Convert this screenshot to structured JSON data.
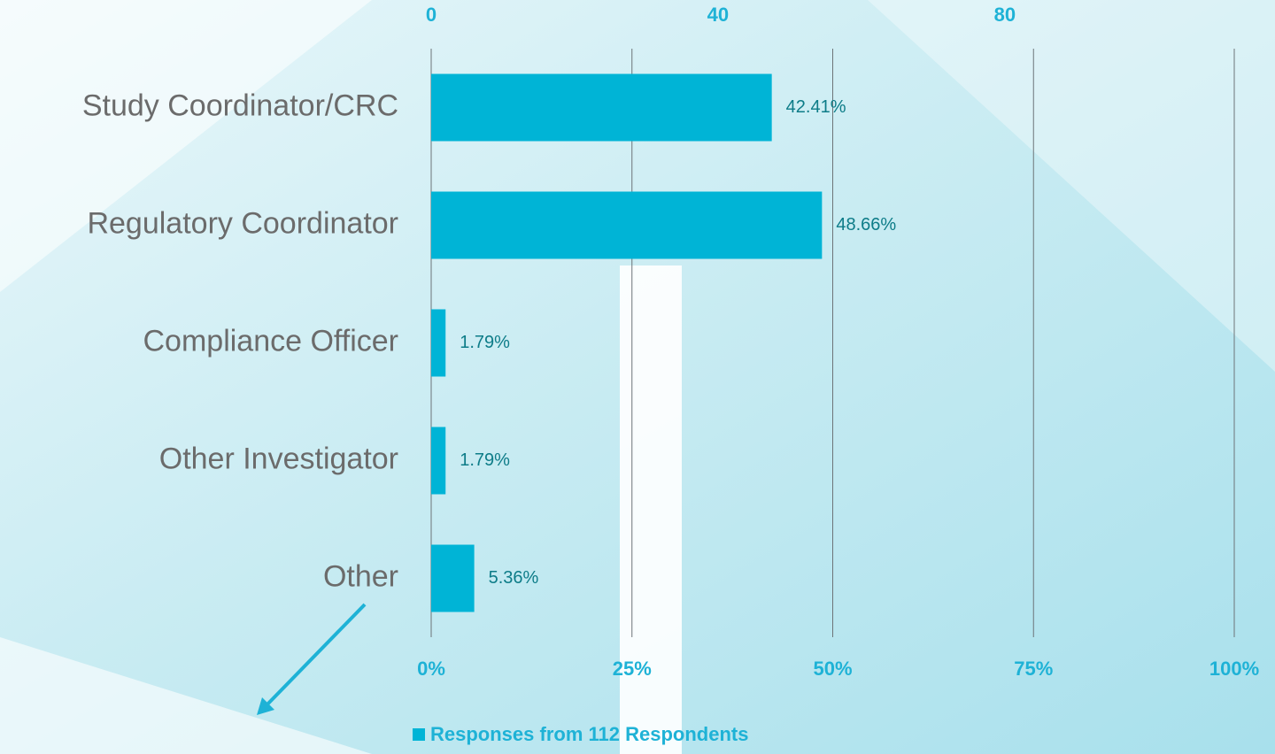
{
  "chart_data": {
    "type": "bar",
    "orientation": "horizontal",
    "categories": [
      "Study Coordinator/CRC",
      "Regulatory Coordinator",
      "Compliance Officer",
      "Other Investigator",
      "Other"
    ],
    "series": [
      {
        "name": "Responses from 112 Respondents",
        "color": "#00b4d6",
        "values": [
          42.41,
          48.66,
          1.79,
          1.79,
          5.36
        ],
        "value_labels": [
          "42.41%",
          "48.66%",
          "1.79%",
          "1.79%",
          "5.36%"
        ]
      }
    ],
    "xlim": [
      0,
      100
    ],
    "xticks": [
      {
        "value": 0,
        "label": "0%"
      },
      {
        "value": 25,
        "label": "25%"
      },
      {
        "value": 50,
        "label": "50%"
      },
      {
        "value": 75,
        "label": "75%"
      },
      {
        "value": 100,
        "label": "100%"
      }
    ],
    "x2lim": [
      0,
      112
    ],
    "x2ticks": [
      0,
      40,
      80
    ],
    "grid": true,
    "legend": "bottom"
  }
}
